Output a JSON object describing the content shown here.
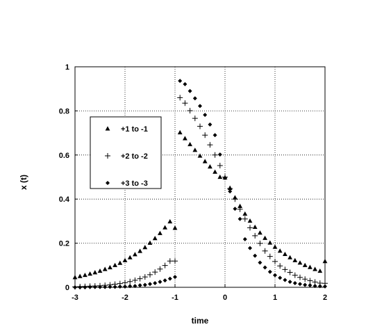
{
  "chart_data": {
    "type": "scatter",
    "title": "",
    "xlabel": "time",
    "ylabel": "x (t)",
    "xlim": [
      -3,
      2
    ],
    "ylim": [
      0,
      1
    ],
    "x_ticks": [
      -3,
      -2,
      -1,
      0,
      1,
      2
    ],
    "y_ticks": [
      0,
      0.2,
      0.4,
      0.6,
      0.8,
      1
    ],
    "x_tick_labels": [
      "-3",
      "-2",
      "-1",
      "0",
      "1",
      "2"
    ],
    "y_tick_labels": [
      "0",
      "0.2",
      "0.4",
      "0.6",
      "0.8",
      "1"
    ],
    "grid": "dotted",
    "legend_position": "upper-left",
    "series": [
      {
        "name": "+1  to  -1",
        "marker": "triangle",
        "color": "#000000",
        "x": [
          -3.0,
          -2.9,
          -2.8,
          -2.7,
          -2.6,
          -2.5,
          -2.4,
          -2.3,
          -2.2,
          -2.1,
          -2.0,
          -1.9,
          -1.8,
          -1.7,
          -1.6,
          -1.5,
          -1.4,
          -1.3,
          -1.2,
          -1.1,
          -1.0,
          -0.9,
          -0.8,
          -0.7,
          -0.6,
          -0.5,
          -0.4,
          -0.3,
          -0.2,
          -0.1,
          0.0,
          0.1,
          0.2,
          0.3,
          0.4,
          0.5,
          0.6,
          0.7,
          0.8,
          0.9,
          1.0,
          1.1,
          1.2,
          1.3,
          1.4,
          1.5,
          1.6,
          1.7,
          1.8,
          1.9,
          2.0
        ],
        "y": [
          0.045,
          0.05,
          0.055,
          0.061,
          0.067,
          0.074,
          0.082,
          0.09,
          0.1,
          0.11,
          0.122,
          0.135,
          0.149,
          0.164,
          0.181,
          0.201,
          0.222,
          0.245,
          0.271,
          0.298,
          0.269,
          0.702,
          0.675,
          0.648,
          0.622,
          0.596,
          0.571,
          0.547,
          0.523,
          0.5,
          0.497,
          0.45,
          0.407,
          0.368,
          0.333,
          0.301,
          0.273,
          0.247,
          0.223,
          0.202,
          0.183,
          0.165,
          0.15,
          0.135,
          0.122,
          0.111,
          0.1,
          0.091,
          0.082,
          0.074,
          0.118
        ]
      },
      {
        "name": "+2  to  -2",
        "marker": "plus",
        "color": "#000000",
        "x": [
          -3.0,
          -2.9,
          -2.8,
          -2.7,
          -2.6,
          -2.5,
          -2.4,
          -2.3,
          -2.2,
          -2.1,
          -2.0,
          -1.9,
          -1.8,
          -1.7,
          -1.6,
          -1.5,
          -1.4,
          -1.3,
          -1.2,
          -1.1,
          -1.0,
          -0.9,
          -0.8,
          -0.7,
          -0.6,
          -0.5,
          -0.4,
          -0.3,
          -0.2,
          -0.1,
          0.0,
          0.1,
          0.2,
          0.3,
          0.4,
          0.5,
          0.6,
          0.7,
          0.8,
          0.9,
          1.0,
          1.1,
          1.2,
          1.3,
          1.4,
          1.5,
          1.6,
          1.7,
          1.8,
          1.9,
          2.0
        ],
        "y": [
          0.002,
          0.003,
          0.004,
          0.005,
          0.006,
          0.007,
          0.009,
          0.011,
          0.014,
          0.017,
          0.021,
          0.026,
          0.032,
          0.039,
          0.047,
          0.057,
          0.069,
          0.083,
          0.099,
          0.119,
          0.119,
          0.86,
          0.835,
          0.801,
          0.766,
          0.73,
          0.69,
          0.646,
          0.6,
          0.552,
          0.5,
          0.448,
          0.4,
          0.354,
          0.31,
          0.27,
          0.234,
          0.199,
          0.165,
          0.14,
          0.117,
          0.097,
          0.081,
          0.068,
          0.055,
          0.045,
          0.037,
          0.03,
          0.024,
          0.019,
          0.018
        ]
      },
      {
        "name": "+3  to  -3",
        "marker": "diamond",
        "color": "#000000",
        "x": [
          -3.0,
          -2.9,
          -2.8,
          -2.7,
          -2.6,
          -2.5,
          -2.4,
          -2.3,
          -2.2,
          -2.1,
          -2.0,
          -1.9,
          -1.8,
          -1.7,
          -1.6,
          -1.5,
          -1.4,
          -1.3,
          -1.2,
          -1.1,
          -1.0,
          -0.9,
          -0.8,
          -0.7,
          -0.6,
          -0.5,
          -0.4,
          -0.3,
          -0.2,
          -0.1,
          0.0,
          0.1,
          0.2,
          0.3,
          0.4,
          0.5,
          0.6,
          0.7,
          0.8,
          0.9,
          1.0,
          1.1,
          1.2,
          1.3,
          1.4,
          1.5,
          1.6,
          1.7,
          1.8,
          1.9,
          2.0
        ],
        "y": [
          0.0,
          0.0,
          0.0,
          0.001,
          0.001,
          0.001,
          0.001,
          0.002,
          0.002,
          0.003,
          0.003,
          0.005,
          0.006,
          0.009,
          0.011,
          0.015,
          0.019,
          0.025,
          0.031,
          0.039,
          0.047,
          0.936,
          0.921,
          0.89,
          0.857,
          0.822,
          0.782,
          0.738,
          0.69,
          0.602,
          0.496,
          0.435,
          0.356,
          0.31,
          0.218,
          0.178,
          0.143,
          0.112,
          0.09,
          0.07,
          0.055,
          0.043,
          0.033,
          0.025,
          0.019,
          0.015,
          0.011,
          0.009,
          0.006,
          0.005,
          0.004
        ]
      }
    ]
  }
}
